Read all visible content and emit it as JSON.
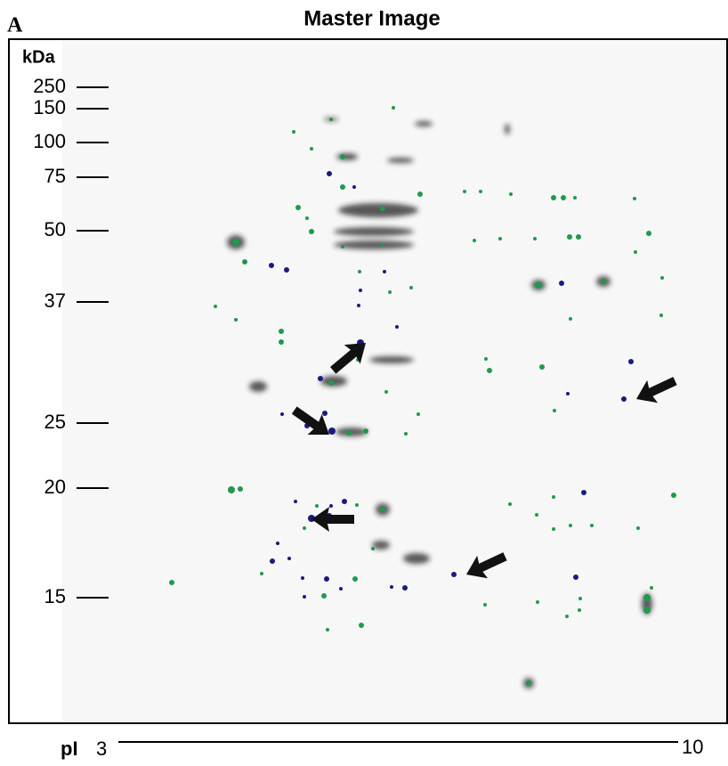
{
  "panel_label": "A",
  "title": "Master Image",
  "y_axis": {
    "unit": "kDa",
    "markers": [
      "250",
      "150",
      "100",
      "75",
      "50",
      "37",
      "25",
      "20",
      "15"
    ]
  },
  "x_axis": {
    "label": "pI",
    "start": "3",
    "end": "10"
  }
}
